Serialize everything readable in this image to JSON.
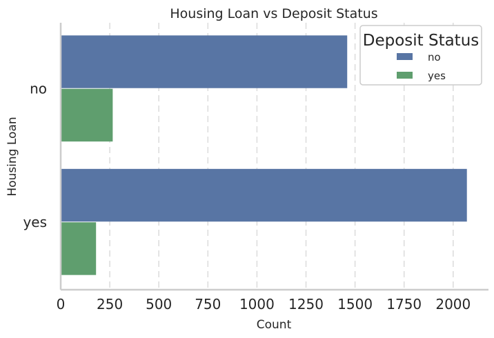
{
  "chart_data": {
    "type": "bar",
    "orientation": "horizontal",
    "title": "Housing Loan vs Deposit Status",
    "xlabel": "Count",
    "ylabel": "Housing Loan",
    "categories": [
      "no",
      "yes"
    ],
    "series": [
      {
        "name": "no",
        "values": [
          1460,
          2070
        ],
        "color": "#5875a4"
      },
      {
        "name": "yes",
        "values": [
          265,
          180
        ],
        "color": "#5f9e6e"
      }
    ],
    "xlim": [
      0,
      2180
    ],
    "xticks": [
      0,
      250,
      500,
      750,
      1000,
      1250,
      1500,
      1750,
      2000
    ],
    "grid": "vertical dashed",
    "legend": {
      "title": "Deposit Status",
      "placement": "top-right"
    }
  }
}
